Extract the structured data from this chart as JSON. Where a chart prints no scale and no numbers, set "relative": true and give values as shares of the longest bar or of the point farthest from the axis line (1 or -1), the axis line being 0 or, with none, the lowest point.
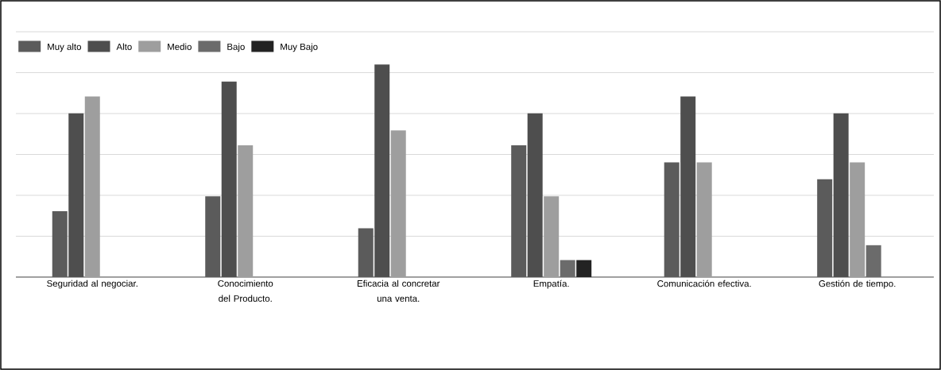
{
  "chart_data": {
    "type": "bar",
    "relative": true,
    "grid": "y",
    "legend": "top left",
    "categories": [
      "Seguridad al negociar.",
      "Conocimiento del Producto.",
      "Eficacia al concretar una venta.",
      "Empatía.",
      "Comunicación efectiva.",
      "Gestión de tiempo."
    ],
    "series": [
      {
        "name": "Muy alto",
        "color": "#5b5b5b",
        "values": [
          0.31,
          0.38,
          0.23,
          0.62,
          0.54,
          0.46
        ]
      },
      {
        "name": "Alto",
        "color": "#4e4e4e",
        "values": [
          0.77,
          0.92,
          1,
          0.77,
          0.85,
          0.77
        ]
      },
      {
        "name": "Medio",
        "color": "#9e9e9e",
        "values": [
          0.85,
          0.62,
          0.69,
          0.38,
          0.54,
          0.54
        ]
      },
      {
        "name": "Bajo",
        "color": "#6b6b6b",
        "values": [
          null,
          null,
          null,
          0.08,
          null,
          0.15
        ]
      },
      {
        "name": "Muy Bajo",
        "color": "#232323",
        "values": [
          null,
          null,
          null,
          0.08,
          null,
          null
        ]
      }
    ]
  }
}
